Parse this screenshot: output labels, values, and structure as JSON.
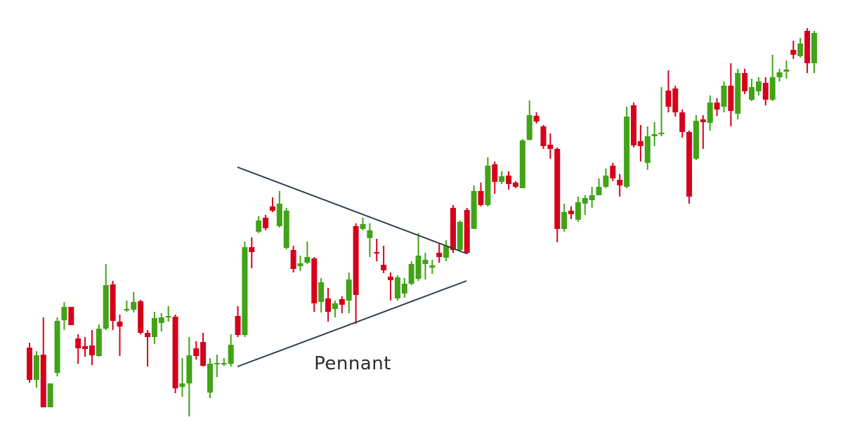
{
  "chart_data": {
    "type": "candlestick",
    "annotation": "Pennant",
    "ylim": [
      0,
      628
    ],
    "up_color": "#41a317",
    "down_color": "#d6001c",
    "open": [
      133,
      87,
      123,
      48,
      97,
      172,
      191,
      146,
      135,
      136,
      121,
      160,
      223,
      170,
      186,
      187,
      199,
      154,
      148,
      168,
      176,
      177,
      77,
      82,
      132,
      141,
      69,
      109,
      109,
      110,
      178,
      151,
      276,
      298,
      318,
      334,
      306,
      275,
      272,
      249,
      254,
      260,
      198,
      203,
      188,
      202,
      200,
      306,
      302,
      289,
      269,
      251,
      234,
      203,
      210,
      224,
      231,
      252,
      247,
      268,
      261,
      332,
      272,
      329,
      302,
      356,
      336,
      394,
      369,
      378,
      368,
      360,
      429,
      463,
      448,
      422,
      416,
      302,
      328,
      315,
      338,
      343,
      350,
      362,
      392,
      372,
      362,
      478,
      427,
      396,
      434,
      437,
      499,
      502,
      468,
      440,
      402,
      458,
      453,
      482,
      476,
      506,
      466,
      524,
      486,
      498,
      510,
      486,
      518,
      526,
      557,
      548,
      584,
      538
    ],
    "high": [
      140,
      128,
      176,
      82,
      176,
      198,
      191,
      152,
      148,
      158,
      166,
      252,
      228,
      180,
      200,
      212,
      201,
      158,
      184,
      182,
      192,
      180,
      118,
      148,
      142,
      154,
      118,
      123,
      118,
      152,
      192,
      284,
      290,
      320,
      322,
      347,
      356,
      332,
      278,
      264,
      284,
      262,
      232,
      218,
      200,
      206,
      240,
      310,
      318,
      310,
      288,
      278,
      240,
      236,
      232,
      256,
      296,
      268,
      258,
      282,
      286,
      336,
      314,
      332,
      364,
      368,
      404,
      398,
      384,
      384,
      370,
      430,
      485,
      468,
      450,
      438,
      418,
      338,
      334,
      348,
      350,
      362,
      374,
      388,
      396,
      380,
      476,
      482,
      450,
      448,
      454,
      504,
      528,
      506,
      472,
      442,
      464,
      464,
      492,
      488,
      512,
      538,
      530,
      530,
      516,
      518,
      518,
      550,
      530,
      542,
      570,
      574,
      588,
      584
    ],
    "low": [
      83,
      76,
      48,
      48,
      92,
      158,
      165,
      110,
      120,
      108,
      120,
      158,
      158,
      121,
      184,
      183,
      152,
      106,
      138,
      156,
      170,
      68,
      63,
      35,
      116,
      106,
      61,
      91,
      107,
      106,
      148,
      148,
      246,
      296,
      300,
      326,
      304,
      273,
      240,
      242,
      252,
      184,
      183,
      170,
      176,
      182,
      182,
      167,
      300,
      262,
      256,
      239,
      200,
      200,
      204,
      222,
      228,
      230,
      238,
      254,
      256,
      268,
      270,
      266,
      302,
      334,
      334,
      352,
      366,
      358,
      360,
      360,
      428,
      452,
      416,
      402,
      283,
      298,
      316,
      312,
      322,
      332,
      350,
      360,
      370,
      348,
      360,
      418,
      398,
      386,
      420,
      434,
      468,
      462,
      432,
      338,
      400,
      416,
      442,
      463,
      468,
      448,
      458,
      494,
      484,
      492,
      478,
      484,
      512,
      516,
      544,
      546,
      524,
      524
    ],
    "close": [
      87,
      122,
      48,
      82,
      171,
      191,
      165,
      132,
      131,
      122,
      160,
      222,
      171,
      163,
      188,
      198,
      154,
      148,
      175,
      176,
      178,
      75,
      82,
      122,
      121,
      107,
      110,
      111,
      111,
      137,
      151,
      276,
      269,
      314,
      303,
      328,
      338,
      328,
      245,
      253,
      262,
      196,
      226,
      184,
      196,
      194,
      230,
      208,
      309,
      300,
      267,
      243,
      229,
      233,
      224,
      252,
      264,
      258,
      250,
      262,
      278,
      272,
      312,
      268,
      356,
      336,
      392,
      369,
      377,
      366,
      362,
      428,
      464,
      455,
      420,
      416,
      302,
      326,
      323,
      340,
      346,
      350,
      362,
      378,
      374,
      364,
      462,
      421,
      420,
      434,
      437,
      439,
      476,
      468,
      440,
      348,
      456,
      454,
      482,
      472,
      506,
      470,
      524,
      498,
      504,
      512,
      486,
      518,
      525,
      529,
      550,
      566,
      538,
      581
    ]
  }
}
